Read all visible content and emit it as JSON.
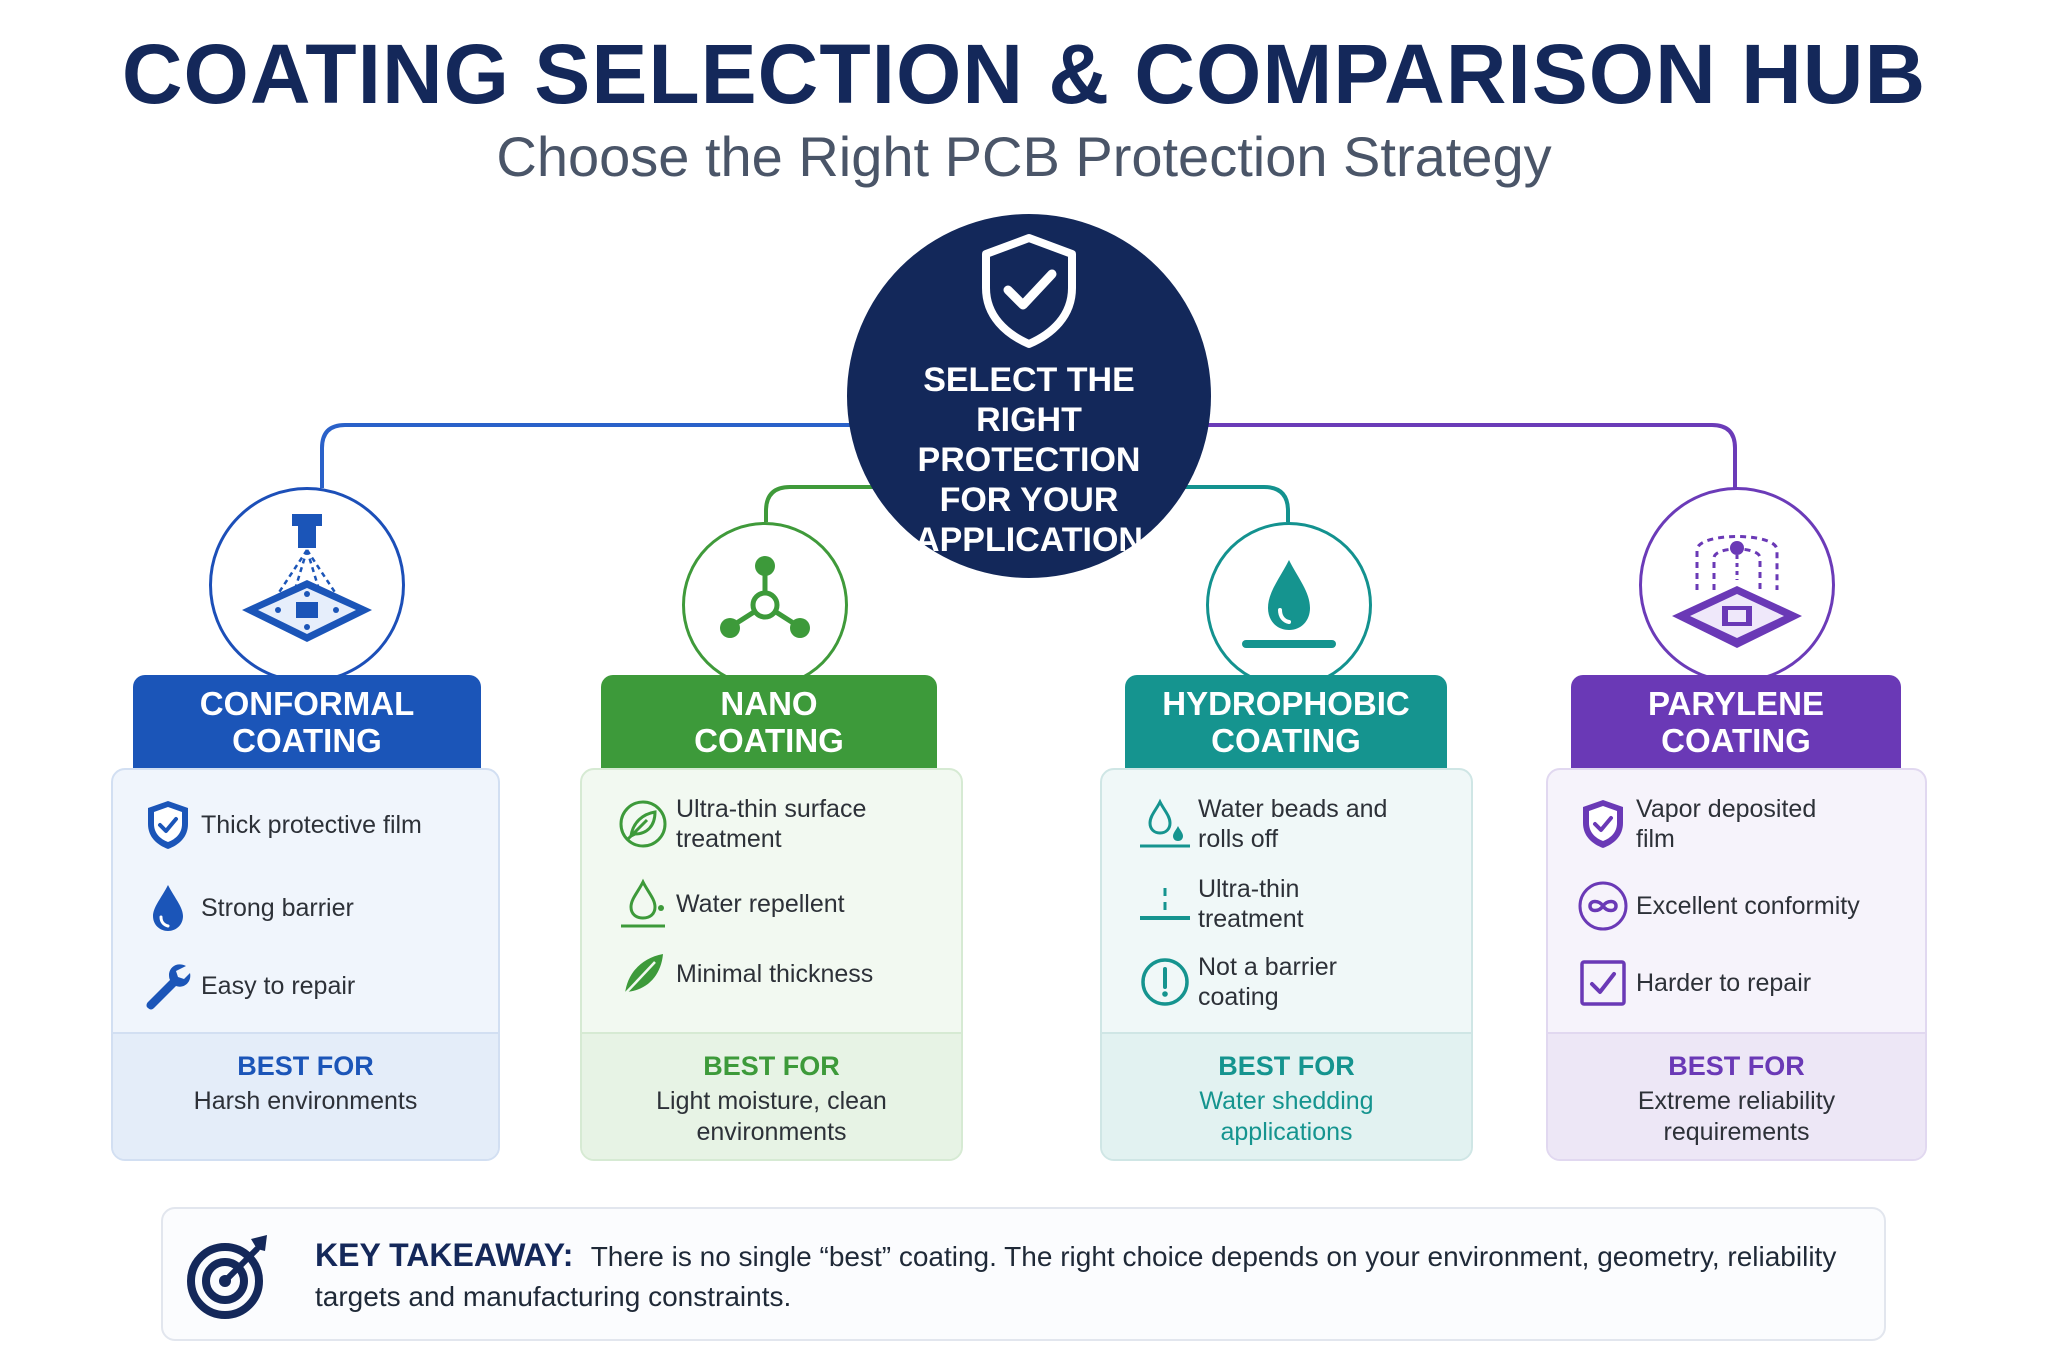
{
  "header": {
    "title": "COATING SELECTION & COMPARISON HUB",
    "subtitle": "Choose the Right PCB Protection Strategy"
  },
  "hub": {
    "text": "SELECT THE RIGHT PROTECTION FOR YOUR APPLICATION",
    "icon": "shield-check-icon"
  },
  "colors": {
    "navy": "#13285a",
    "conformal": "#1b55b8",
    "nano": "#3d9a3a",
    "hydrophobic": "#15948f",
    "parylene": "#6a39b6"
  },
  "cards": [
    {
      "title_line1": "CONFORMAL",
      "title_line2": "COATING",
      "icon": "spray-nozzle-pcb-icon",
      "features": [
        {
          "icon": "shield-check-icon",
          "text": "Thick protective film"
        },
        {
          "icon": "water-drop-icon",
          "text": "Strong barrier"
        },
        {
          "icon": "wrench-icon",
          "text": "Easy to repair"
        }
      ],
      "best_label": "BEST FOR",
      "best_text": "Harsh environments"
    },
    {
      "title_line1": "NANO",
      "title_line2": "COATING",
      "icon": "molecule-icon",
      "features": [
        {
          "icon": "leaf-circle-icon",
          "text": "Ultra-thin surface treatment"
        },
        {
          "icon": "drop-on-surface-icon",
          "text": "Water repellent"
        },
        {
          "icon": "feather-icon",
          "text": "Minimal thickness"
        }
      ],
      "best_label": "BEST FOR",
      "best_text": "Light moisture, clean environments"
    },
    {
      "title_line1": "HYDROPHOBIC",
      "title_line2": "COATING",
      "icon": "water-drop-surface-icon",
      "features": [
        {
          "icon": "water-beads-icon",
          "text": "Water beads and rolls off"
        },
        {
          "icon": "thin-layer-icon",
          "text": "Ultra-thin treatment"
        },
        {
          "icon": "alert-circle-icon",
          "text": "Not a barrier coating"
        }
      ],
      "best_label": "BEST FOR",
      "best_text": "Water shedding applications"
    },
    {
      "title_line1": "PARYLENE",
      "title_line2": "COATING",
      "icon": "vapor-chip-icon",
      "features": [
        {
          "icon": "shield-check-icon",
          "text": "Vapor deposited film"
        },
        {
          "icon": "infinity-circle-icon",
          "text": "Excellent conformity"
        },
        {
          "icon": "checkbox-icon",
          "text": "Harder to repair"
        }
      ],
      "best_label": "BEST FOR",
      "best_text": "Extreme reliability requirements"
    }
  ],
  "takeaway": {
    "icon": "target-icon",
    "label": "KEY TAKEAWAY:",
    "text": "There is no single “best” coating. The right choice depends on your environment, geometry, reliability targets and manufacturing constraints."
  }
}
